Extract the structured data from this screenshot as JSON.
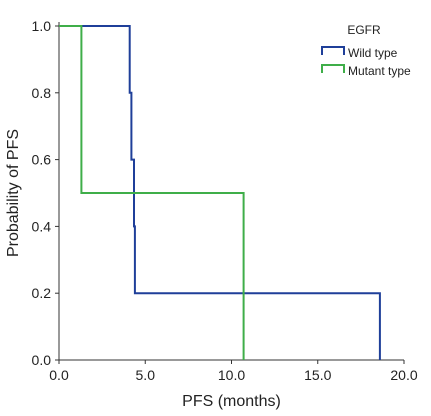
{
  "chart_data": {
    "type": "line",
    "step": true,
    "xlabel": "PFS (months)",
    "ylabel": "Probability of PFS",
    "xlim": [
      0,
      20
    ],
    "ylim": [
      0,
      1
    ],
    "x_ticks": [
      "0.0",
      "5.0",
      "10.0",
      "15.0",
      "20.0"
    ],
    "y_ticks": [
      "0.0",
      "0.2",
      "0.4",
      "0.6",
      "0.8",
      "1.0"
    ],
    "grid": false,
    "legend": {
      "title": "EGFR",
      "position": "top-right"
    },
    "series": [
      {
        "name": "Wild type",
        "color": "#1f3f99",
        "points": [
          [
            0,
            1.0
          ],
          [
            4.1,
            1.0
          ],
          [
            4.1,
            0.8
          ],
          [
            4.2,
            0.8
          ],
          [
            4.2,
            0.6
          ],
          [
            4.35,
            0.6
          ],
          [
            4.35,
            0.4
          ],
          [
            4.4,
            0.4
          ],
          [
            4.4,
            0.2
          ],
          [
            18.6,
            0.2
          ],
          [
            18.6,
            0.0
          ]
        ]
      },
      {
        "name": "Mutant type",
        "color": "#3fae49",
        "points": [
          [
            0,
            1.0
          ],
          [
            1.3,
            1.0
          ],
          [
            1.3,
            0.5
          ],
          [
            10.7,
            0.5
          ],
          [
            10.7,
            0.0
          ]
        ]
      }
    ]
  }
}
